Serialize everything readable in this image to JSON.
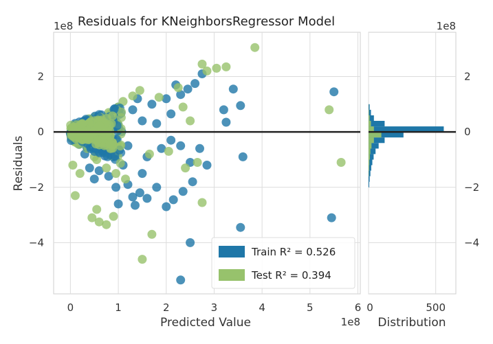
{
  "chart_data": {
    "type": "scatter",
    "title": "Residuals for KNeighborsRegressor Model",
    "xlabel": "Predicted Value",
    "ylabel": "Residuals",
    "x_offset_label": "1e8",
    "y_offset_label": "1e8",
    "hist_offset_label": "1e8",
    "xlim": [
      -0.35,
      6.05
    ],
    "ylim": [
      -5.85,
      3.6
    ],
    "x_ticks": [
      "0",
      "1",
      "2",
      "3",
      "4",
      "5",
      "6"
    ],
    "y_ticks": [
      "2",
      "0",
      "−2",
      "−4"
    ],
    "hist_xlabel": "Distribution",
    "hist_ticks": [
      "0",
      "500"
    ],
    "hist_xlim": [
      0,
      650
    ],
    "grid": true,
    "legend_position": "lower-right",
    "zero_line": 0,
    "colors": {
      "train": "#1f77a8",
      "test": "#97c26c",
      "line": "#222222"
    },
    "series": [
      {
        "name": "Train",
        "legend_text": "Train R² = 0.526",
        "points": [
          [
            2.3,
            -5.35
          ],
          [
            2.5,
            -4.0
          ],
          [
            3.55,
            -3.45
          ],
          [
            5.45,
            -3.1
          ],
          [
            2.0,
            -2.7
          ],
          [
            2.35,
            -2.15
          ],
          [
            2.55,
            -1.8
          ],
          [
            1.8,
            -2.0
          ],
          [
            1.45,
            -2.2
          ],
          [
            1.3,
            -2.35
          ],
          [
            1.2,
            -1.9
          ],
          [
            0.95,
            -2.0
          ],
          [
            0.8,
            -1.6
          ],
          [
            0.6,
            -1.4
          ],
          [
            0.5,
            -1.7
          ],
          [
            0.4,
            -1.3
          ],
          [
            1.0,
            -2.6
          ],
          [
            1.5,
            -1.5
          ],
          [
            1.1,
            -1.2
          ],
          [
            0.9,
            -0.9
          ],
          [
            0.7,
            -0.7
          ],
          [
            0.3,
            -0.8
          ],
          [
            0.6,
            -0.4
          ],
          [
            1.6,
            -0.9
          ],
          [
            1.9,
            -0.6
          ],
          [
            2.1,
            -0.3
          ],
          [
            2.3,
            -0.5
          ],
          [
            2.7,
            -0.6
          ],
          [
            2.85,
            -1.2
          ],
          [
            2.5,
            -1.1
          ],
          [
            3.6,
            -0.9
          ],
          [
            3.25,
            0.35
          ],
          [
            3.2,
            0.8
          ],
          [
            3.55,
            0.95
          ],
          [
            3.4,
            1.55
          ],
          [
            2.2,
            1.7
          ],
          [
            2.45,
            1.55
          ],
          [
            2.3,
            1.35
          ],
          [
            2.0,
            1.2
          ],
          [
            1.7,
            1.0
          ],
          [
            1.3,
            0.8
          ],
          [
            1.0,
            0.9
          ],
          [
            0.9,
            0.6
          ],
          [
            0.7,
            0.5
          ],
          [
            0.5,
            0.45
          ],
          [
            0.3,
            0.3
          ],
          [
            1.5,
            0.4
          ],
          [
            1.8,
            0.3
          ],
          [
            2.1,
            0.65
          ],
          [
            1.4,
            1.2
          ],
          [
            2.6,
            1.75
          ],
          [
            2.75,
            2.1
          ],
          [
            5.5,
            1.45
          ],
          [
            1.2,
            -0.5
          ],
          [
            0.8,
            -0.2
          ],
          [
            0.4,
            -0.4
          ],
          [
            0.2,
            -0.2
          ],
          [
            0.15,
            0.1
          ],
          [
            1.6,
            -2.4
          ],
          [
            1.35,
            -2.65
          ],
          [
            2.15,
            -2.45
          ]
        ]
      },
      {
        "name": "Test",
        "legend_text": "Test R² = 0.394",
        "points": [
          [
            1.5,
            -4.6
          ],
          [
            1.7,
            -3.7
          ],
          [
            0.45,
            -3.1
          ],
          [
            0.6,
            -3.25
          ],
          [
            0.75,
            -3.35
          ],
          [
            0.9,
            -3.05
          ],
          [
            0.55,
            -2.8
          ],
          [
            0.1,
            -2.3
          ],
          [
            2.75,
            -2.55
          ],
          [
            5.65,
            -1.1
          ],
          [
            5.4,
            0.8
          ],
          [
            3.85,
            3.05
          ],
          [
            3.05,
            2.3
          ],
          [
            2.75,
            2.45
          ],
          [
            3.25,
            2.35
          ],
          [
            2.85,
            2.2
          ],
          [
            1.85,
            1.25
          ],
          [
            1.45,
            1.5
          ],
          [
            1.3,
            1.3
          ],
          [
            1.1,
            1.1
          ],
          [
            1.0,
            0.9
          ],
          [
            0.8,
            0.7
          ],
          [
            0.6,
            0.5
          ],
          [
            0.4,
            0.4
          ],
          [
            0.25,
            0.2
          ],
          [
            0.15,
            -0.15
          ],
          [
            0.35,
            -0.6
          ],
          [
            0.55,
            -1.0
          ],
          [
            0.75,
            -1.3
          ],
          [
            0.95,
            -1.5
          ],
          [
            1.15,
            -1.7
          ],
          [
            2.4,
            -1.3
          ],
          [
            2.65,
            -1.1
          ],
          [
            2.05,
            -0.7
          ],
          [
            2.5,
            0.4
          ],
          [
            2.35,
            0.9
          ],
          [
            2.25,
            1.6
          ],
          [
            1.65,
            -0.8
          ],
          [
            0.05,
            -1.2
          ],
          [
            0.2,
            -1.5
          ],
          [
            0.5,
            -0.9
          ],
          [
            0.7,
            -0.3
          ],
          [
            0.9,
            0.2
          ]
        ]
      }
    ],
    "histogram": {
      "bin_edges": [
        -2.0,
        -1.8,
        -1.6,
        -1.4,
        -1.2,
        -1.0,
        -0.8,
        -0.6,
        -0.4,
        -0.2,
        0.0,
        0.2,
        0.4,
        0.6,
        0.8,
        1.0
      ],
      "train_counts": [
        5,
        8,
        14,
        20,
        28,
        38,
        52,
        75,
        120,
        260,
        560,
        120,
        40,
        18,
        8
      ],
      "test_counts": [
        0,
        0,
        2,
        4,
        6,
        10,
        14,
        22,
        40,
        95,
        40,
        18,
        8,
        3,
        1
      ]
    }
  }
}
